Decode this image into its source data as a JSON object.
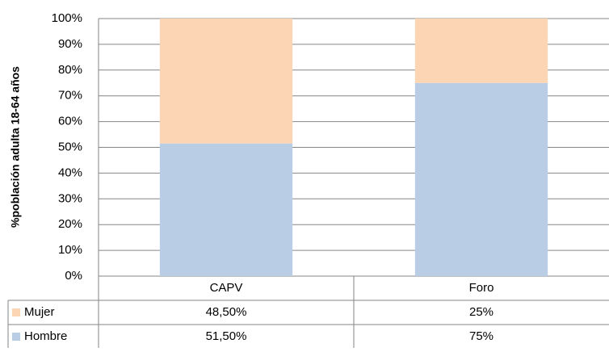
{
  "chart_data": {
    "type": "stacked_bar",
    "y_label": "%población adulta 18-64 años",
    "categories": [
      "CAPV",
      "Foro"
    ],
    "series": [
      {
        "name": "Mujer",
        "color": "#fcd5b5",
        "values": [
          48.5,
          25
        ],
        "value_labels": [
          "48,50%",
          "25%"
        ]
      },
      {
        "name": "Hombre",
        "color": "#b9cde5",
        "values": [
          51.5,
          75
        ],
        "value_labels": [
          "51,50%",
          "75%"
        ]
      }
    ],
    "ylim": [
      0,
      100
    ],
    "yticks": [
      {
        "value": 0,
        "label": "0%"
      },
      {
        "value": 10,
        "label": "10%"
      },
      {
        "value": 20,
        "label": "20%"
      },
      {
        "value": 30,
        "label": "30%"
      },
      {
        "value": 40,
        "label": "40%"
      },
      {
        "value": 50,
        "label": "50%"
      },
      {
        "value": 60,
        "label": "60%"
      },
      {
        "value": 70,
        "label": "70%"
      },
      {
        "value": 80,
        "label": "80%"
      },
      {
        "value": 90,
        "label": "90%"
      },
      {
        "value": 100,
        "label": "100%"
      }
    ],
    "grid": true
  }
}
